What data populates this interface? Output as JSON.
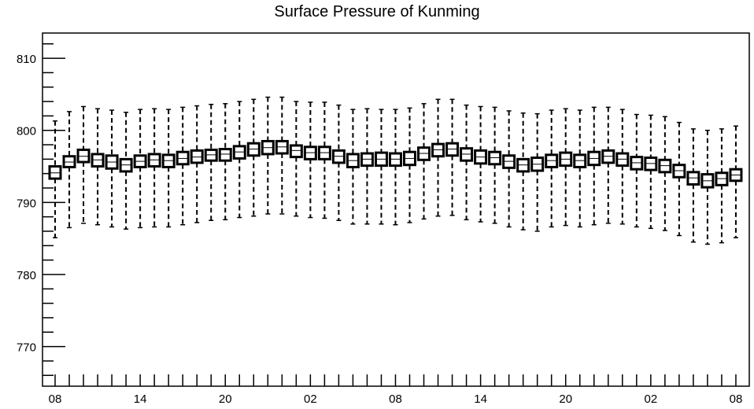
{
  "chart_data": {
    "type": "boxplot",
    "title": "Surface Pressure of Kunming",
    "xlabel": "",
    "ylabel": "",
    "ylim": [
      764.5,
      813.5
    ],
    "y_ticks": [
      770,
      780,
      790,
      800,
      810
    ],
    "x_tick_labels": [
      "08",
      "14",
      "20",
      "02",
      "08",
      "14",
      "20",
      "02",
      "08"
    ],
    "x_tick_positions": [
      0,
      6,
      12,
      18,
      24,
      30,
      36,
      42,
      48
    ],
    "x": [
      0,
      1,
      2,
      3,
      4,
      5,
      6,
      7,
      8,
      9,
      10,
      11,
      12,
      13,
      14,
      15,
      16,
      17,
      18,
      19,
      20,
      21,
      22,
      23,
      24,
      25,
      26,
      27,
      28,
      29,
      30,
      31,
      32,
      33,
      34,
      35,
      36,
      37,
      38,
      39,
      40,
      41,
      42,
      43,
      44,
      45,
      46,
      47,
      48
    ],
    "median": [
      794.1,
      795.6,
      796.4,
      795.9,
      795.6,
      795.2,
      795.7,
      795.9,
      795.8,
      796.1,
      796.3,
      796.6,
      796.7,
      797.0,
      797.4,
      797.6,
      797.7,
      797.2,
      796.9,
      796.9,
      796.4,
      795.8,
      796.0,
      796.0,
      796.0,
      796.1,
      796.8,
      797.3,
      797.4,
      796.7,
      796.3,
      796.2,
      795.7,
      795.2,
      795.3,
      795.8,
      796.0,
      795.8,
      796.1,
      796.4,
      796.0,
      795.5,
      795.4,
      795.1,
      794.4,
      793.4,
      793.0,
      793.3,
      793.8
    ],
    "q1": [
      793.3,
      794.9,
      795.6,
      795.0,
      794.7,
      794.3,
      794.9,
      795.0,
      794.9,
      795.3,
      795.5,
      795.8,
      795.8,
      796.1,
      796.5,
      796.7,
      796.8,
      796.3,
      796.0,
      796.0,
      795.5,
      794.9,
      795.1,
      795.1,
      795.1,
      795.2,
      795.9,
      796.4,
      796.5,
      795.8,
      795.4,
      795.3,
      794.8,
      794.3,
      794.4,
      794.9,
      795.1,
      794.9,
      795.2,
      795.5,
      795.1,
      794.6,
      794.5,
      794.2,
      793.5,
      792.5,
      792.1,
      792.4,
      793.0
    ],
    "q3": [
      795.0,
      796.4,
      797.3,
      796.7,
      796.5,
      796.0,
      796.5,
      796.7,
      796.6,
      797.0,
      797.2,
      797.3,
      797.4,
      797.8,
      798.2,
      798.5,
      798.5,
      797.9,
      797.7,
      797.7,
      797.2,
      796.7,
      796.8,
      796.9,
      796.8,
      797.0,
      797.6,
      798.1,
      798.2,
      797.5,
      797.2,
      797.0,
      796.5,
      796.0,
      796.2,
      796.6,
      796.9,
      796.6,
      797.0,
      797.2,
      796.8,
      796.3,
      796.2,
      795.9,
      795.2,
      794.2,
      793.9,
      794.1,
      794.6
    ],
    "whisker_low": [
      785.1,
      786.5,
      787.1,
      786.9,
      786.6,
      786.3,
      786.5,
      786.6,
      786.6,
      786.9,
      787.2,
      787.5,
      787.6,
      787.9,
      788.1,
      788.4,
      788.4,
      788.1,
      787.9,
      787.8,
      787.5,
      787.0,
      787.0,
      787.0,
      786.9,
      787.2,
      787.7,
      788.1,
      788.2,
      787.6,
      787.3,
      787.1,
      786.6,
      786.2,
      786.0,
      786.6,
      786.8,
      786.6,
      786.9,
      787.1,
      787.0,
      786.6,
      786.4,
      786.1,
      785.4,
      784.5,
      784.2,
      784.4,
      785.1
    ],
    "whisker_high": [
      801.3,
      802.6,
      803.3,
      803.0,
      802.8,
      802.5,
      802.9,
      803.0,
      802.9,
      803.2,
      803.4,
      803.6,
      803.7,
      804.0,
      804.3,
      804.6,
      804.6,
      804.0,
      803.9,
      803.9,
      803.5,
      802.9,
      803.0,
      802.9,
      802.9,
      803.1,
      803.7,
      804.3,
      804.3,
      803.5,
      803.3,
      803.2,
      802.7,
      802.4,
      802.3,
      802.8,
      803.0,
      802.8,
      803.2,
      803.2,
      802.9,
      802.2,
      802.1,
      801.9,
      801.1,
      800.2,
      800.0,
      800.2,
      800.6
    ],
    "grid": false,
    "legend": "none"
  }
}
